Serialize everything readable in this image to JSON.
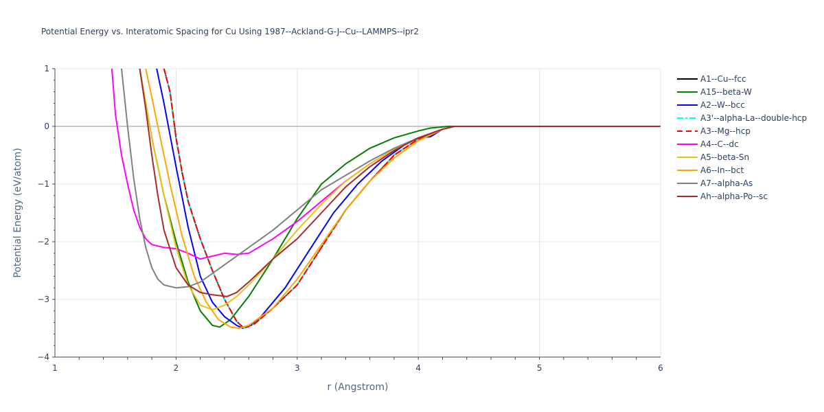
{
  "chart_data": {
    "type": "line",
    "title": "Potential Energy vs. Interatomic Spacing for Cu Using 1987--Ackland-G-J--Cu--LAMMPS--ipr2",
    "xlabel": "r (Angstrom)",
    "ylabel": "Potential Energy (eV/atom)",
    "xlim": [
      1,
      6
    ],
    "ylim": [
      -4,
      1
    ],
    "xticks": [
      "1",
      "2",
      "3",
      "4",
      "5",
      "6"
    ],
    "yticks": [
      "1",
      "0",
      "−1",
      "−2",
      "−3",
      "−4"
    ],
    "xtick_values": [
      1,
      2,
      3,
      4,
      5,
      6
    ],
    "ytick_values": [
      1,
      0,
      -1,
      -2,
      -3,
      -4
    ],
    "grid": true,
    "legend_position": "top-right",
    "series": [
      {
        "name": "A1--Cu--fcc",
        "color": "#000000",
        "dash": "solid",
        "points": [
          [
            1.9,
            1.0
          ],
          [
            1.95,
            0.6
          ],
          [
            2.0,
            -0.2
          ],
          [
            2.05,
            -0.8
          ],
          [
            2.1,
            -1.3
          ],
          [
            2.2,
            -1.95
          ],
          [
            2.3,
            -2.5
          ],
          [
            2.4,
            -3.0
          ],
          [
            2.5,
            -3.38
          ],
          [
            2.56,
            -3.5
          ],
          [
            2.65,
            -3.42
          ],
          [
            2.8,
            -3.15
          ],
          [
            3.0,
            -2.75
          ],
          [
            3.2,
            -2.1
          ],
          [
            3.4,
            -1.45
          ],
          [
            3.6,
            -0.95
          ],
          [
            3.8,
            -0.5
          ],
          [
            4.0,
            -0.22
          ],
          [
            4.1,
            -0.15
          ],
          [
            4.2,
            -0.05
          ],
          [
            4.3,
            0.0
          ],
          [
            4.5,
            0.0
          ],
          [
            6.0,
            0.0
          ]
        ]
      },
      {
        "name": "A15--beta-W",
        "color": "#008000",
        "dash": "solid",
        "points": [
          [
            1.7,
            1.0
          ],
          [
            1.8,
            -0.2
          ],
          [
            1.9,
            -1.2
          ],
          [
            2.0,
            -2.0
          ],
          [
            2.1,
            -2.7
          ],
          [
            2.2,
            -3.2
          ],
          [
            2.3,
            -3.45
          ],
          [
            2.36,
            -3.48
          ],
          [
            2.45,
            -3.35
          ],
          [
            2.6,
            -2.95
          ],
          [
            2.8,
            -2.3
          ],
          [
            3.0,
            -1.6
          ],
          [
            3.2,
            -1.0
          ],
          [
            3.4,
            -0.65
          ],
          [
            3.6,
            -0.38
          ],
          [
            3.8,
            -0.2
          ],
          [
            4.0,
            -0.08
          ],
          [
            4.1,
            -0.03
          ],
          [
            4.25,
            0.0
          ],
          [
            4.5,
            0.0
          ],
          [
            6.0,
            0.0
          ]
        ]
      },
      {
        "name": "A2--W--bcc",
        "color": "#0000ff",
        "dash": "solid",
        "points": [
          [
            1.84,
            1.0
          ],
          [
            1.9,
            0.4
          ],
          [
            2.0,
            -0.7
          ],
          [
            2.1,
            -1.75
          ],
          [
            2.2,
            -2.6
          ],
          [
            2.3,
            -3.05
          ],
          [
            2.4,
            -3.3
          ],
          [
            2.5,
            -3.45
          ],
          [
            2.55,
            -3.5
          ],
          [
            2.6,
            -3.47
          ],
          [
            2.7,
            -3.3
          ],
          [
            2.9,
            -2.8
          ],
          [
            3.1,
            -2.15
          ],
          [
            3.3,
            -1.5
          ],
          [
            3.5,
            -1.0
          ],
          [
            3.7,
            -0.6
          ],
          [
            3.9,
            -0.3
          ],
          [
            4.0,
            -0.2
          ],
          [
            4.1,
            -0.18
          ],
          [
            4.2,
            -0.05
          ],
          [
            4.3,
            0.0
          ],
          [
            4.5,
            0.0
          ],
          [
            6.0,
            0.0
          ]
        ]
      },
      {
        "name": "A3'--alpha-La--double-hcp",
        "color": "#00ffff",
        "dash": "dashdot",
        "points": [
          [
            1.9,
            1.0
          ],
          [
            1.95,
            0.6
          ],
          [
            2.0,
            -0.2
          ],
          [
            2.05,
            -0.8
          ],
          [
            2.1,
            -1.3
          ],
          [
            2.2,
            -1.95
          ],
          [
            2.3,
            -2.5
          ],
          [
            2.4,
            -3.0
          ],
          [
            2.5,
            -3.38
          ],
          [
            2.56,
            -3.5
          ],
          [
            2.65,
            -3.42
          ],
          [
            2.8,
            -3.15
          ],
          [
            3.0,
            -2.75
          ],
          [
            3.2,
            -2.1
          ],
          [
            3.4,
            -1.45
          ],
          [
            3.6,
            -0.95
          ],
          [
            3.8,
            -0.5
          ],
          [
            4.0,
            -0.22
          ],
          [
            4.1,
            -0.15
          ],
          [
            4.2,
            -0.05
          ],
          [
            4.3,
            0.0
          ],
          [
            4.5,
            0.0
          ],
          [
            6.0,
            0.0
          ]
        ]
      },
      {
        "name": "A3--Mg--hcp",
        "color": "#ff0000",
        "dash": "dash",
        "points": [
          [
            1.9,
            1.0
          ],
          [
            1.95,
            0.6
          ],
          [
            2.0,
            -0.2
          ],
          [
            2.05,
            -0.8
          ],
          [
            2.1,
            -1.3
          ],
          [
            2.2,
            -1.95
          ],
          [
            2.3,
            -2.5
          ],
          [
            2.4,
            -3.0
          ],
          [
            2.5,
            -3.38
          ],
          [
            2.56,
            -3.5
          ],
          [
            2.65,
            -3.42
          ],
          [
            2.8,
            -3.15
          ],
          [
            3.0,
            -2.75
          ],
          [
            3.2,
            -2.1
          ],
          [
            3.4,
            -1.45
          ],
          [
            3.6,
            -0.95
          ],
          [
            3.8,
            -0.5
          ],
          [
            4.0,
            -0.22
          ],
          [
            4.1,
            -0.15
          ],
          [
            4.2,
            -0.05
          ],
          [
            4.3,
            0.0
          ],
          [
            4.5,
            0.0
          ],
          [
            6.0,
            0.0
          ]
        ]
      },
      {
        "name": "A4--C--dc",
        "color": "#ff00ff",
        "dash": "solid",
        "points": [
          [
            1.47,
            1.0
          ],
          [
            1.5,
            0.2
          ],
          [
            1.55,
            -0.5
          ],
          [
            1.6,
            -1.0
          ],
          [
            1.65,
            -1.45
          ],
          [
            1.7,
            -1.75
          ],
          [
            1.75,
            -1.95
          ],
          [
            1.8,
            -2.05
          ],
          [
            1.9,
            -2.1
          ],
          [
            2.0,
            -2.12
          ],
          [
            2.1,
            -2.2
          ],
          [
            2.2,
            -2.3
          ],
          [
            2.3,
            -2.25
          ],
          [
            2.4,
            -2.2
          ],
          [
            2.5,
            -2.22
          ],
          [
            2.6,
            -2.2
          ],
          [
            2.8,
            -1.95
          ],
          [
            3.0,
            -1.65
          ],
          [
            3.2,
            -1.3
          ],
          [
            3.4,
            -0.95
          ],
          [
            3.6,
            -0.65
          ],
          [
            3.8,
            -0.4
          ],
          [
            4.0,
            -0.2
          ],
          [
            4.2,
            -0.05
          ],
          [
            4.3,
            0.0
          ],
          [
            4.5,
            0.0
          ],
          [
            6.0,
            0.0
          ]
        ]
      },
      {
        "name": "A5--beta-Sn",
        "color": "#e6c317",
        "dash": "solid",
        "points": [
          [
            1.7,
            1.0
          ],
          [
            1.8,
            -0.2
          ],
          [
            1.9,
            -1.2
          ],
          [
            2.0,
            -2.1
          ],
          [
            2.1,
            -2.75
          ],
          [
            2.2,
            -3.1
          ],
          [
            2.3,
            -3.18
          ],
          [
            2.4,
            -3.1
          ],
          [
            2.5,
            -2.95
          ],
          [
            2.6,
            -2.75
          ],
          [
            2.8,
            -2.3
          ],
          [
            3.0,
            -1.8
          ],
          [
            3.2,
            -1.35
          ],
          [
            3.4,
            -0.95
          ],
          [
            3.6,
            -0.65
          ],
          [
            3.8,
            -0.4
          ],
          [
            4.0,
            -0.2
          ],
          [
            4.2,
            -0.05
          ],
          [
            4.3,
            0.0
          ],
          [
            4.5,
            0.0
          ],
          [
            6.0,
            0.0
          ]
        ]
      },
      {
        "name": "A6--In--bct",
        "color": "#ffa500",
        "dash": "solid",
        "points": [
          [
            1.75,
            1.0
          ],
          [
            1.85,
            0.0
          ],
          [
            1.95,
            -1.0
          ],
          [
            2.05,
            -1.9
          ],
          [
            2.15,
            -2.6
          ],
          [
            2.25,
            -3.05
          ],
          [
            2.35,
            -3.35
          ],
          [
            2.45,
            -3.48
          ],
          [
            2.52,
            -3.5
          ],
          [
            2.6,
            -3.45
          ],
          [
            2.8,
            -3.15
          ],
          [
            3.0,
            -2.65
          ],
          [
            3.2,
            -2.05
          ],
          [
            3.4,
            -1.45
          ],
          [
            3.6,
            -0.95
          ],
          [
            3.8,
            -0.55
          ],
          [
            4.0,
            -0.25
          ],
          [
            4.2,
            -0.05
          ],
          [
            4.3,
            0.0
          ],
          [
            4.5,
            0.0
          ],
          [
            6.0,
            0.0
          ]
        ]
      },
      {
        "name": "A7--alpha-As",
        "color": "#808080",
        "dash": "solid",
        "points": [
          [
            1.55,
            1.0
          ],
          [
            1.6,
            0.0
          ],
          [
            1.65,
            -0.9
          ],
          [
            1.7,
            -1.6
          ],
          [
            1.75,
            -2.1
          ],
          [
            1.8,
            -2.45
          ],
          [
            1.85,
            -2.65
          ],
          [
            1.9,
            -2.75
          ],
          [
            2.0,
            -2.8
          ],
          [
            2.1,
            -2.78
          ],
          [
            2.2,
            -2.7
          ],
          [
            2.3,
            -2.55
          ],
          [
            2.4,
            -2.4
          ],
          [
            2.6,
            -2.1
          ],
          [
            2.8,
            -1.8
          ],
          [
            3.0,
            -1.45
          ],
          [
            3.2,
            -1.1
          ],
          [
            3.4,
            -0.85
          ],
          [
            3.6,
            -0.6
          ],
          [
            3.8,
            -0.38
          ],
          [
            4.0,
            -0.2
          ],
          [
            4.2,
            -0.05
          ],
          [
            4.3,
            0.0
          ],
          [
            4.5,
            0.0
          ],
          [
            6.0,
            0.0
          ]
        ]
      },
      {
        "name": "Ah--alpha-Po--sc",
        "color": "#a52a2a",
        "dash": "solid",
        "points": [
          [
            1.7,
            1.0
          ],
          [
            1.75,
            0.3
          ],
          [
            1.8,
            -0.5
          ],
          [
            1.85,
            -1.2
          ],
          [
            1.9,
            -1.8
          ],
          [
            2.0,
            -2.45
          ],
          [
            2.1,
            -2.75
          ],
          [
            2.2,
            -2.88
          ],
          [
            2.3,
            -2.92
          ],
          [
            2.42,
            -2.95
          ],
          [
            2.5,
            -2.88
          ],
          [
            2.6,
            -2.7
          ],
          [
            2.8,
            -2.3
          ],
          [
            3.0,
            -1.95
          ],
          [
            3.2,
            -1.5
          ],
          [
            3.4,
            -1.05
          ],
          [
            3.6,
            -0.7
          ],
          [
            3.8,
            -0.42
          ],
          [
            4.0,
            -0.2
          ],
          [
            4.2,
            -0.05
          ],
          [
            4.3,
            0.0
          ],
          [
            4.5,
            0.0
          ],
          [
            6.0,
            0.0
          ]
        ]
      }
    ]
  }
}
